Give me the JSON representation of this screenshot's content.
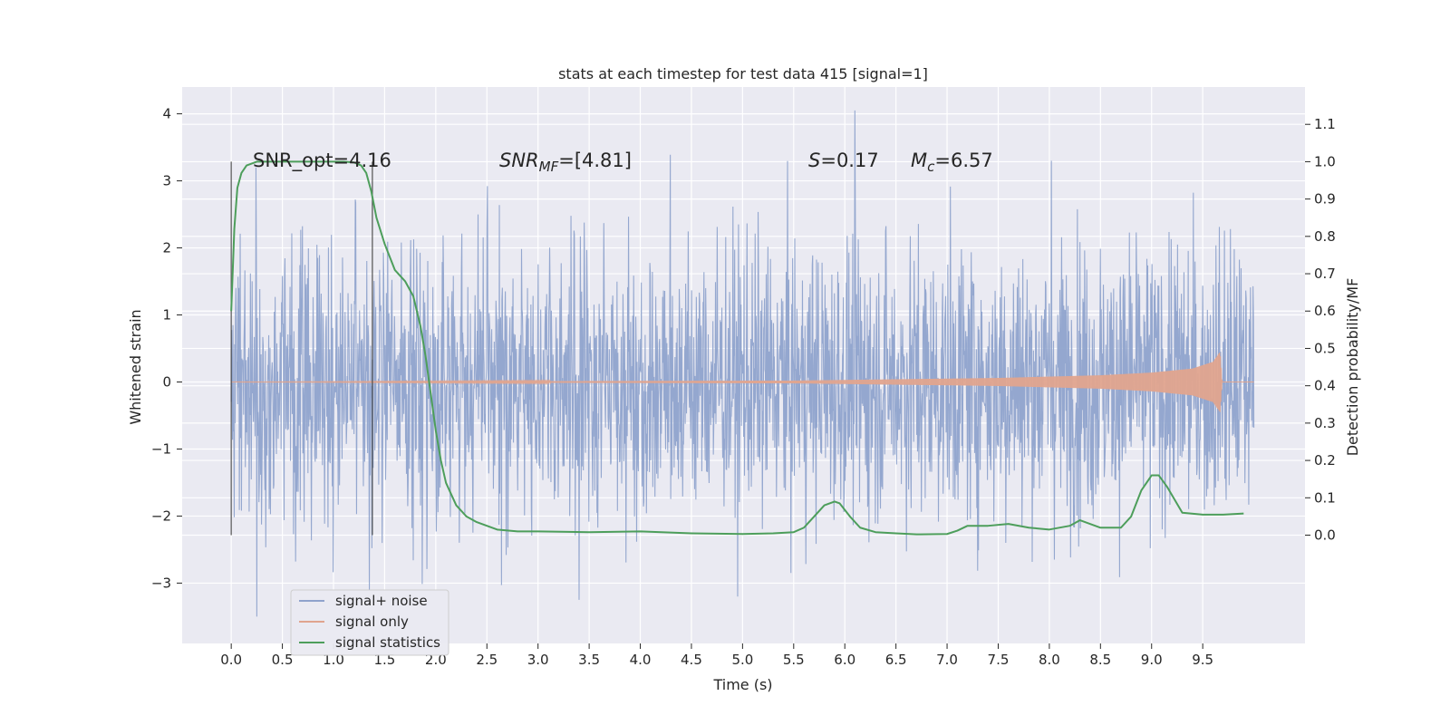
{
  "chart_data": {
    "type": "line",
    "title": "stats at each timestep for test data 415 [signal=1]",
    "xlabel": "Time (s)",
    "ylabel": "Whitened strain",
    "ylabel_right": "Detection probability/MF",
    "xlim": [
      -0.48,
      10.5
    ],
    "ylim": [
      -3.9,
      4.4
    ],
    "ylim_right": [
      -0.29,
      1.2
    ],
    "x_ticks": [
      "0.0",
      "0.5",
      "1.0",
      "1.5",
      "2.0",
      "2.5",
      "3.0",
      "3.5",
      "4.0",
      "4.5",
      "5.0",
      "5.5",
      "6.0",
      "6.5",
      "7.0",
      "7.5",
      "8.0",
      "8.5",
      "9.0",
      "9.5"
    ],
    "y_ticks": [
      "4",
      "3",
      "2",
      "1",
      "0",
      "−1",
      "−2",
      "−3"
    ],
    "y_ticks_right": [
      "1.1",
      "1.0",
      "0.9",
      "0.8",
      "0.7",
      "0.6",
      "0.5",
      "0.4",
      "0.3",
      "0.2",
      "0.1",
      "0.0"
    ],
    "grid": true,
    "legend_position": "lower-left",
    "annotations": {
      "snr_opt": "SNR_opt=4.16",
      "snr_mf_main": "SNR",
      "snr_mf_sub": "MF",
      "snr_mf_value": "=[4.81]",
      "s_main": "S",
      "s_value": "=0.17",
      "mc_main": "M",
      "mc_sub": "c",
      "mc_value": "=6.57"
    },
    "vlines": [
      0.0,
      1.38
    ],
    "series": [
      {
        "name": "signal+ noise",
        "color": "#8fa3cc",
        "axis": "left",
        "kind": "noise",
        "x_range": [
          0.0,
          10.0
        ],
        "envelope": [
          -3.5,
          4.05
        ],
        "peaks": [
          [
            0.24,
            3.2
          ],
          [
            6.1,
            4.05
          ],
          [
            8.02,
            3.3
          ],
          [
            0.25,
            -3.5
          ],
          [
            3.4,
            -3.25
          ],
          [
            4.95,
            -3.2
          ],
          [
            1.35,
            -3.1
          ]
        ]
      },
      {
        "name": "signal only",
        "color": "#e0a48e",
        "axis": "left",
        "kind": "chirp",
        "x": [
          0.0,
          5.5,
          6.5,
          7.5,
          8.5,
          9.0,
          9.4,
          9.6,
          9.67,
          9.69,
          10.0
        ],
        "amplitude": [
          0.0,
          0.02,
          0.04,
          0.06,
          0.1,
          0.14,
          0.2,
          0.3,
          0.45,
          0.0,
          0.0
        ]
      },
      {
        "name": "signal statistics",
        "color": "#4d9e5b",
        "axis": "right",
        "kind": "line",
        "x": [
          0.0,
          0.03,
          0.06,
          0.1,
          0.15,
          0.25,
          0.4,
          0.6,
          0.8,
          1.0,
          1.1,
          1.2,
          1.27,
          1.32,
          1.37,
          1.42,
          1.5,
          1.6,
          1.7,
          1.78,
          1.85,
          1.9,
          1.95,
          2.0,
          2.05,
          2.1,
          2.2,
          2.3,
          2.4,
          2.6,
          2.8,
          3.0,
          3.5,
          4.0,
          4.5,
          5.0,
          5.3,
          5.5,
          5.6,
          5.7,
          5.8,
          5.9,
          5.95,
          6.05,
          6.15,
          6.3,
          6.5,
          6.7,
          7.0,
          7.1,
          7.2,
          7.4,
          7.6,
          7.8,
          8.0,
          8.2,
          8.3,
          8.5,
          8.7,
          8.8,
          8.9,
          9.0,
          9.07,
          9.15,
          9.3,
          9.5,
          9.7,
          9.9
        ],
        "y": [
          0.6,
          0.82,
          0.93,
          0.97,
          0.99,
          1.0,
          1.0,
          1.0,
          1.0,
          1.0,
          1.0,
          0.998,
          0.99,
          0.97,
          0.92,
          0.85,
          0.78,
          0.71,
          0.68,
          0.64,
          0.56,
          0.48,
          0.38,
          0.28,
          0.2,
          0.14,
          0.08,
          0.05,
          0.035,
          0.015,
          0.01,
          0.01,
          0.008,
          0.01,
          0.005,
          0.003,
          0.005,
          0.008,
          0.02,
          0.05,
          0.08,
          0.09,
          0.085,
          0.05,
          0.02,
          0.008,
          0.005,
          0.002,
          0.003,
          0.012,
          0.025,
          0.025,
          0.03,
          0.02,
          0.015,
          0.025,
          0.04,
          0.02,
          0.02,
          0.05,
          0.12,
          0.16,
          0.16,
          0.13,
          0.06,
          0.055,
          0.055,
          0.058
        ]
      }
    ]
  }
}
